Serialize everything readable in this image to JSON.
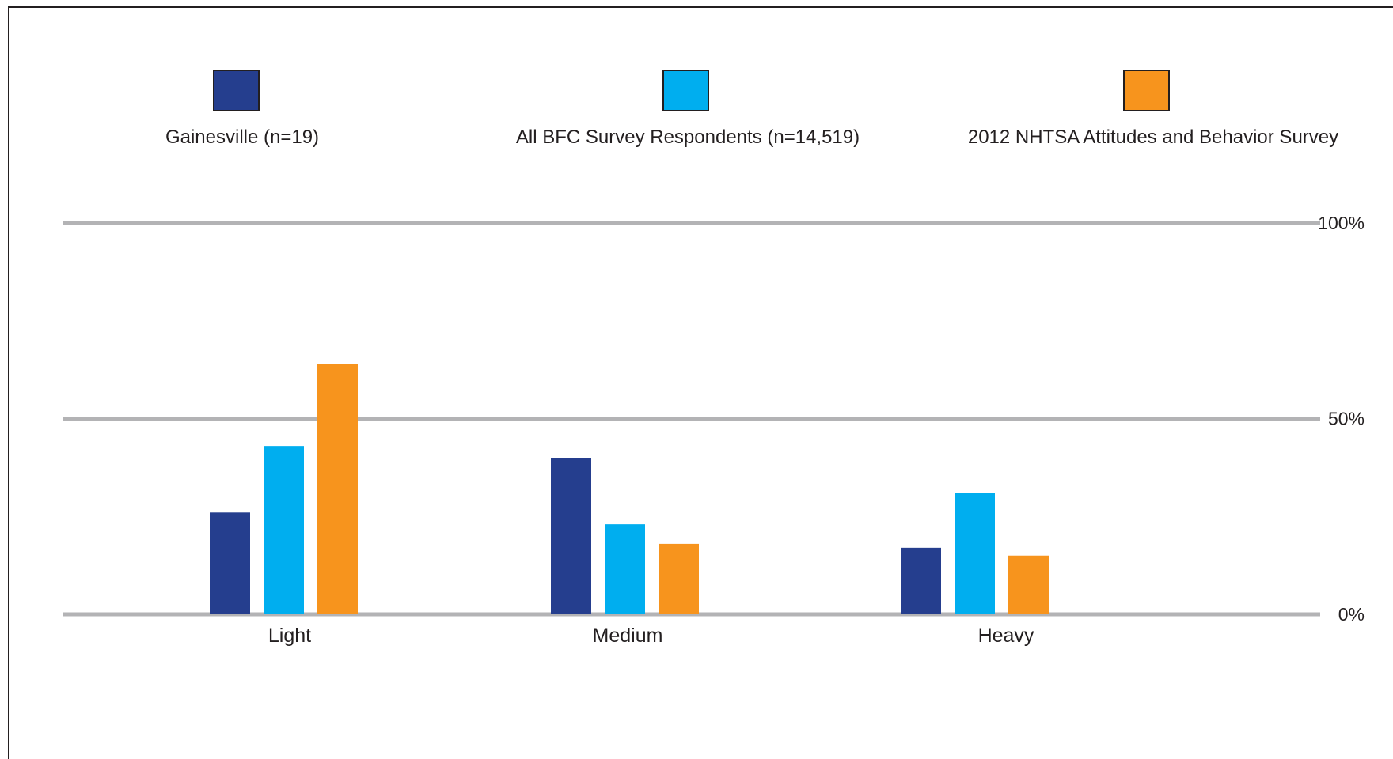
{
  "chart_data": {
    "type": "bar",
    "title": "",
    "xlabel": "",
    "ylabel": "",
    "categories": [
      "Light",
      "Medium",
      "Heavy"
    ],
    "series": [
      {
        "name": "Gainesville (n=19)",
        "values": [
          26,
          40,
          17
        ],
        "color": "#253e8e"
      },
      {
        "name": "All BFC Survey Respondents (n=14,519)",
        "values": [
          43,
          23,
          31
        ],
        "color": "#00aeef"
      },
      {
        "name": "2012 NHTSA Attitudes and Behavior Survey",
        "values": [
          64,
          18,
          15
        ],
        "color": "#f7941d"
      }
    ],
    "ylim": [
      0,
      100
    ],
    "yticks": [
      0,
      50,
      100
    ],
    "ytick_labels": [
      "0%",
      "50%",
      "100%"
    ],
    "grid": true,
    "legend_position": "top"
  }
}
